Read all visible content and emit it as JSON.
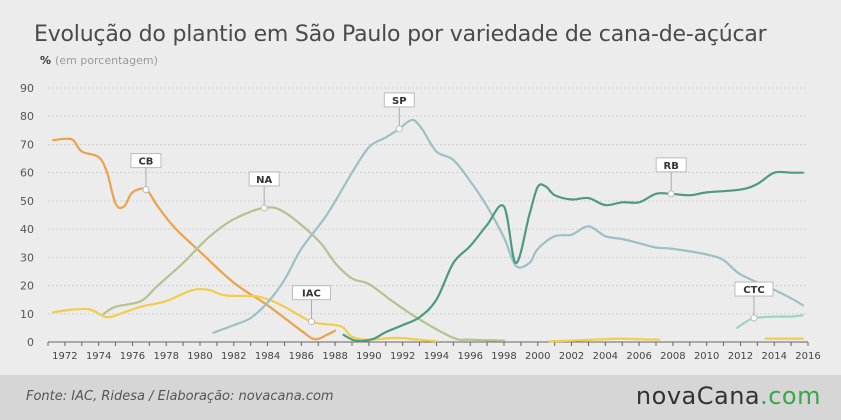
{
  "title": "Evolução do plantio em São Paulo por variedade de cana-de-açúcar",
  "unit_symbol": "%",
  "unit_label": "(em porcentagem)",
  "source": "Fonte: IAC, Ridesa / Elaboração: novacana.com",
  "brand": {
    "main": "novaCana",
    "suffix": ".com"
  },
  "chart_data": {
    "type": "line",
    "xlim": [
      1971,
      2016
    ],
    "ylim": [
      0,
      90
    ],
    "yticks": [
      0,
      10,
      20,
      30,
      40,
      50,
      60,
      70,
      80,
      90
    ],
    "xticks": [
      1972,
      1974,
      1976,
      1978,
      1980,
      1982,
      1984,
      1986,
      1988,
      1990,
      1992,
      1994,
      1996,
      1998,
      2000,
      2002,
      2004,
      2006,
      2008,
      2010,
      2012,
      2014,
      2016
    ],
    "grid": true,
    "series": [
      {
        "name": "CB",
        "color": "#eca24a",
        "label_x": 1976.8,
        "label_y": 54,
        "points": [
          [
            1971.3,
            71.5
          ],
          [
            1972,
            72
          ],
          [
            1972.5,
            71.5
          ],
          [
            1973,
            67.5
          ],
          [
            1974,
            65.5
          ],
          [
            1974.5,
            60
          ],
          [
            1975,
            49
          ],
          [
            1975.5,
            48
          ],
          [
            1976,
            53
          ],
          [
            1976.8,
            54
          ],
          [
            1977.5,
            48
          ],
          [
            1978.5,
            40.5
          ],
          [
            1980,
            32
          ],
          [
            1982,
            21
          ],
          [
            1984,
            13
          ],
          [
            1986,
            4
          ],
          [
            1986.8,
            1
          ],
          [
            1987.5,
            2.5
          ],
          [
            1988,
            4
          ]
        ]
      },
      {
        "name": "NA",
        "color": "#b5c28f",
        "label_x": 1983.8,
        "label_y": 47.5,
        "points": [
          [
            1974.3,
            10
          ],
          [
            1975,
            12.5
          ],
          [
            1976.5,
            14.5
          ],
          [
            1977.5,
            20
          ],
          [
            1979,
            28
          ],
          [
            1980.5,
            37
          ],
          [
            1982,
            43.5
          ],
          [
            1983.8,
            47.5
          ],
          [
            1985,
            46
          ],
          [
            1987,
            36
          ],
          [
            1988,
            28
          ],
          [
            1989,
            22.5
          ],
          [
            1990,
            20.5
          ],
          [
            1991.5,
            14
          ],
          [
            1993,
            8
          ],
          [
            1995,
            1.5
          ],
          [
            1996,
            0.8
          ],
          [
            1998,
            0.5
          ]
        ]
      },
      {
        "name": "IAC",
        "color": "#f3cd4a",
        "label_x": 1986.6,
        "label_y": 7.2,
        "points": [
          [
            1971.3,
            10.5
          ],
          [
            1972.5,
            11.5
          ],
          [
            1973.5,
            11.5
          ],
          [
            1974.5,
            8.8
          ],
          [
            1975.5,
            10.5
          ],
          [
            1976.5,
            12.5
          ],
          [
            1978,
            14.5
          ],
          [
            1979.5,
            18.3
          ],
          [
            1980.5,
            18.5
          ],
          [
            1981.5,
            16.5
          ],
          [
            1983.5,
            16
          ],
          [
            1985,
            12.5
          ],
          [
            1986.6,
            7.2
          ],
          [
            1988,
            6
          ],
          [
            1988.5,
            5
          ],
          [
            1989,
            1.8
          ],
          [
            1990,
            0.8
          ],
          [
            1991.5,
            1.5
          ],
          [
            1993,
            0.8
          ],
          [
            1994,
            0.3
          ]
        ]
      },
      {
        "name": "SP",
        "color": "#9dbfc8",
        "label_x": 1991.8,
        "label_y": 75.5,
        "points": [
          [
            1980.8,
            3.3
          ],
          [
            1982,
            6
          ],
          [
            1983,
            8.5
          ],
          [
            1984,
            14
          ],
          [
            1985,
            22
          ],
          [
            1986,
            33
          ],
          [
            1987.5,
            45
          ],
          [
            1989,
            60
          ],
          [
            1990,
            69
          ],
          [
            1991,
            72.5
          ],
          [
            1991.8,
            75.5
          ],
          [
            1992.3,
            78
          ],
          [
            1992.7,
            78.5
          ],
          [
            1993.2,
            75
          ],
          [
            1994,
            67.5
          ],
          [
            1995,
            64.5
          ],
          [
            1996,
            57
          ],
          [
            1997,
            48
          ],
          [
            1998,
            37
          ],
          [
            1998.7,
            27
          ],
          [
            1999.5,
            28
          ],
          [
            2000,
            33
          ],
          [
            2001,
            37.5
          ],
          [
            2002,
            38
          ],
          [
            2003,
            41
          ],
          [
            2004,
            37.5
          ],
          [
            2005,
            36.5
          ],
          [
            2006,
            35
          ],
          [
            2007,
            33.5
          ],
          [
            2008,
            33
          ],
          [
            2010,
            31
          ],
          [
            2011,
            29
          ],
          [
            2012,
            24
          ],
          [
            2014,
            18.5
          ],
          [
            2015,
            15.5
          ],
          [
            2015.7,
            13
          ]
        ]
      },
      {
        "name": "RB",
        "color": "#4e9a7e",
        "label_x": 2007.9,
        "label_y": 52.5,
        "points": [
          [
            1988.5,
            2.5
          ],
          [
            1989.2,
            0.5
          ],
          [
            1990.2,
            1
          ],
          [
            1991,
            3.5
          ],
          [
            1992,
            6
          ],
          [
            1993,
            8.8
          ],
          [
            1994,
            15
          ],
          [
            1995,
            28
          ],
          [
            1996,
            34
          ],
          [
            1997,
            41.5
          ],
          [
            1998,
            48
          ],
          [
            1998.7,
            28
          ],
          [
            1999.5,
            45
          ],
          [
            2000,
            55
          ],
          [
            2000.5,
            55
          ],
          [
            2001,
            52
          ],
          [
            2002,
            50.5
          ],
          [
            2003,
            51
          ],
          [
            2004,
            48.5
          ],
          [
            2005,
            49.5
          ],
          [
            2006,
            49.5
          ],
          [
            2007,
            52.5
          ],
          [
            2007.9,
            52.5
          ],
          [
            2009,
            52
          ],
          [
            2010,
            53
          ],
          [
            2012,
            54
          ],
          [
            2013,
            56
          ],
          [
            2014,
            60
          ],
          [
            2015,
            60
          ],
          [
            2015.7,
            60
          ]
        ]
      },
      {
        "name": "CTC",
        "color": "#9ad8b8",
        "label_x": 2012.8,
        "label_y": 8.5,
        "points": [
          [
            2011.8,
            5
          ],
          [
            2012.3,
            7
          ],
          [
            2012.8,
            8.5
          ],
          [
            2014,
            9
          ],
          [
            2015,
            9
          ],
          [
            2015.7,
            9.5
          ]
        ]
      },
      {
        "name": "",
        "color": "#f3cd4a",
        "label_x": null,
        "label_y": null,
        "points": [
          [
            2000.7,
            0.2
          ],
          [
            2002,
            0.5
          ],
          [
            2004,
            1
          ],
          [
            2005,
            1.2
          ],
          [
            2006,
            1
          ],
          [
            2007.2,
            0.8
          ]
        ]
      },
      {
        "name": "",
        "color": "#f3cd4a",
        "label_x": null,
        "label_y": null,
        "points": [
          [
            2013.5,
            1.2
          ],
          [
            2015.7,
            1.2
          ]
        ]
      }
    ]
  }
}
